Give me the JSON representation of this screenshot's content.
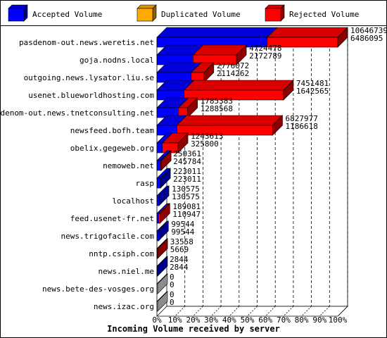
{
  "chart_data": {
    "type": "bar",
    "orientation": "horizontal",
    "stacked": true,
    "three_d": true,
    "title": "",
    "xlabel": "Incoming Volume received by server",
    "ylabel": "",
    "xlim": [
      0,
      100
    ],
    "x_unit": "%",
    "ticks": [
      "0%",
      "10%",
      "20%",
      "30%",
      "40%",
      "50%",
      "60%",
      "70%",
      "80%",
      "90%",
      "100%"
    ],
    "grid": true,
    "legend_position": "top",
    "legend": [
      {
        "key": "accepted",
        "label": "Accepted Volume",
        "color": "#0000ff"
      },
      {
        "key": "duplicated",
        "label": "Duplicated Volume",
        "color": "#ffaa00"
      },
      {
        "key": "rejected",
        "label": "Rejected Volume",
        "color": "#ff0000"
      }
    ],
    "categories": [
      "pasdenom-out.news.weretis.net",
      "goja.nodns.local",
      "outgoing.news.lysator.liu.se",
      "usenet.blueworldhosting.com",
      "pasdenom-out.news.tnetconsulting.net",
      "newsfeed.bofh.team",
      "obelix.gegeweb.org",
      "nemoweb.net",
      "rasp",
      "localhost",
      "feed.usenet-fr.net",
      "news.trigofacile.com",
      "nntp.csiph.com",
      "news.niel.me",
      "news.bete-des-vosges.org",
      "news.izac.org"
    ],
    "volume_total": [
      "10646739",
      "4724478",
      "2776072",
      "7451481",
      "1785383",
      "6827977",
      "1243613",
      "250361",
      "223011",
      "130575",
      "189081",
      "99544",
      "33558",
      "2844",
      "0",
      "0"
    ],
    "volume_accepted": [
      "6486095",
      "2172789",
      "2114262",
      "1642565",
      "1288568",
      "1186618",
      "325800",
      "245784",
      "223011",
      "130575",
      "110947",
      "99544",
      "5669",
      "2844",
      "0",
      "0"
    ],
    "series": [
      {
        "name": "Accepted Volume",
        "values": [
          61,
          20,
          19,
          15,
          12,
          11,
          3,
          2,
          2,
          1.2,
          1,
          0.9,
          0.05,
          0.03,
          0,
          0
        ]
      },
      {
        "name": "Duplicated Volume",
        "values": [
          0,
          0,
          0,
          0,
          0,
          0,
          0,
          0,
          0,
          0,
          0,
          0,
          0,
          0,
          0,
          0
        ]
      },
      {
        "name": "Rejected Volume",
        "values": [
          39,
          24,
          7,
          55,
          5,
          53,
          8.7,
          0.05,
          0,
          0,
          0.7,
          0,
          0.26,
          0,
          0,
          0
        ]
      }
    ]
  }
}
